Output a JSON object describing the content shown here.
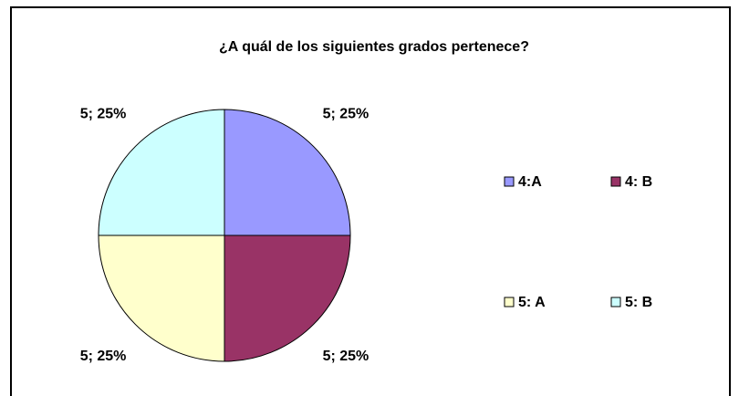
{
  "chart_data": {
    "type": "pie",
    "title": "¿A quál de los siguientes grados pertenece?",
    "categories": [
      "4:A",
      "4: B",
      "5: A",
      "5: B"
    ],
    "values": [
      5,
      5,
      5,
      5
    ],
    "value_labels": [
      "5; 25%",
      "5; 25%",
      "5; 25%",
      "5; 25%"
    ],
    "colors": [
      "#9999ff",
      "#993366",
      "#ffffcc",
      "#ccffff"
    ],
    "legend": "right"
  }
}
